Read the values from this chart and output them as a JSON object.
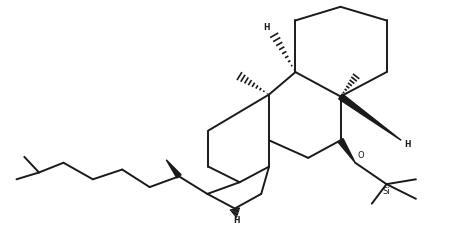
{
  "background": "#ffffff",
  "line_color": "#1a1a1a",
  "lw": 1.4,
  "fig_width": 4.5,
  "fig_height": 2.26,
  "dpi": 100,
  "xlim": [
    0,
    10
  ],
  "ylim": [
    0,
    5
  ]
}
